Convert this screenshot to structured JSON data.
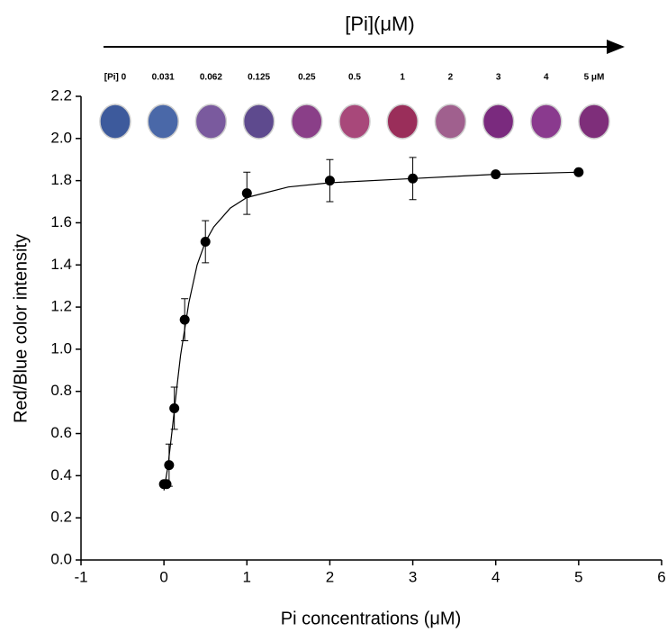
{
  "chart_data": {
    "type": "scatter",
    "title": "[Pi](μM)",
    "x_label": "Pi concentrations (μM)",
    "y_label": "Red/Blue color intensity",
    "wells": [
      {
        "label": "[Pi] 0",
        "color": "#3d5a9c"
      },
      {
        "label": "0.031",
        "color": "#4a68a8"
      },
      {
        "label": "0.062",
        "color": "#7a5a9e"
      },
      {
        "label": "0.125",
        "color": "#5e4a8e"
      },
      {
        "label": "0.25",
        "color": "#8a3f88"
      },
      {
        "label": "0.5",
        "color": "#a8487a"
      },
      {
        "label": "1",
        "color": "#9a2e5a"
      },
      {
        "label": "2",
        "color": "#a0608e"
      },
      {
        "label": "3",
        "color": "#7a2a7e"
      },
      {
        "label": "4",
        "color": "#8a3a8e"
      },
      {
        "label": "5 μM",
        "color": "#7e2e7a"
      }
    ],
    "series": [
      {
        "x": [
          0,
          0.031,
          0.062,
          0.125,
          0.25,
          0.5,
          1,
          2,
          3,
          4,
          5
        ],
        "values": [
          0.36,
          0.36,
          0.45,
          0.72,
          1.14,
          1.51,
          1.74,
          1.8,
          1.81,
          1.83,
          1.84
        ],
        "errors": [
          0.01,
          0.01,
          0.1,
          0.1,
          0.1,
          0.1,
          0.1,
          0.1,
          0.1,
          0,
          0
        ],
        "color": "#000000"
      }
    ],
    "fit": {
      "x": [
        0,
        0.05,
        0.1,
        0.15,
        0.2,
        0.3,
        0.4,
        0.5,
        0.6,
        0.8,
        1,
        1.5,
        2,
        3,
        4,
        5
      ],
      "values": [
        0.33,
        0.45,
        0.62,
        0.8,
        0.97,
        1.22,
        1.4,
        1.51,
        1.58,
        1.67,
        1.72,
        1.77,
        1.79,
        1.81,
        1.83,
        1.84
      ],
      "color": "#000000"
    },
    "xlim": [
      -1,
      6
    ],
    "xticks": [
      -1,
      0,
      1,
      2,
      3,
      4,
      5,
      6
    ],
    "ylim": [
      0,
      2.2
    ],
    "yticks": [
      {
        "value": 0,
        "label": "0.0"
      },
      0.2,
      0.4,
      0.6,
      0.8,
      {
        "value": 1,
        "label": "1.0"
      },
      1.2,
      1.4,
      1.6,
      1.8,
      {
        "value": 2,
        "label": "2.0"
      },
      2.2
    ]
  }
}
